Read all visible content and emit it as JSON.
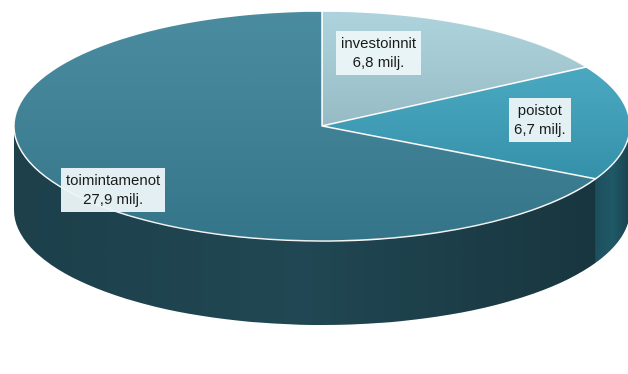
{
  "chart_data": {
    "type": "pie",
    "title": "",
    "start": "12 o'clock",
    "direction": "clockwise",
    "slices": [
      {
        "label": "investoinnit",
        "value_text": "6,8 milj.",
        "value": 6.8,
        "color": "#a6cfd9"
      },
      {
        "label": "poistot",
        "value_text": "6,7 milj.",
        "value": 6.7,
        "color": "#3aa0bb"
      },
      {
        "label": "toimintamenot",
        "value_text": "27,9 milj.",
        "value": 27.9,
        "color": "#3a8197"
      }
    ],
    "legend": "none",
    "data_labels": "label; value"
  }
}
